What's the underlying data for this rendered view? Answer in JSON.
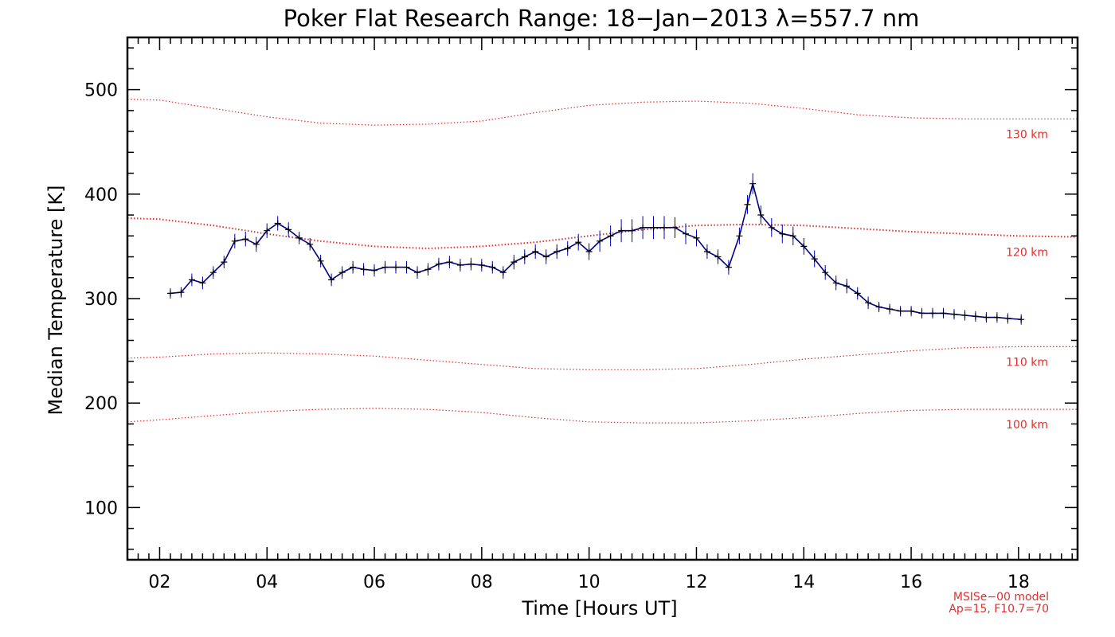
{
  "chart_data": {
    "type": "line",
    "title": "Poker Flat Research Range: 18−Jan−2013 λ=557.7 nm",
    "xlabel": "Time [Hours UT]",
    "ylabel": "Median Temperature [K]",
    "xlim": [
      1.4,
      19.1
    ],
    "ylim": [
      50,
      550
    ],
    "x_ticks": [
      2,
      4,
      6,
      8,
      10,
      12,
      14,
      16,
      18
    ],
    "x_tick_labels": [
      "02",
      "04",
      "06",
      "08",
      "10",
      "12",
      "14",
      "16",
      "18"
    ],
    "y_ticks": [
      100,
      200,
      300,
      400,
      500
    ],
    "y_tick_labels": [
      "100",
      "200",
      "300",
      "400",
      "500"
    ],
    "grid": false,
    "series": [
      {
        "color": "#000080",
        "error_color": "#0000cc",
        "x": [
          2.2,
          2.4,
          2.6,
          2.8,
          3.0,
          3.2,
          3.4,
          3.6,
          3.8,
          4.0,
          4.2,
          4.4,
          4.6,
          4.8,
          5.0,
          5.2,
          5.4,
          5.6,
          5.8,
          6.0,
          6.2,
          6.4,
          6.6,
          6.8,
          7.0,
          7.2,
          7.4,
          7.6,
          7.8,
          8.0,
          8.2,
          8.4,
          8.6,
          8.8,
          9.0,
          9.2,
          9.4,
          9.6,
          9.8,
          10.0,
          10.2,
          10.4,
          10.6,
          10.8,
          11.0,
          11.2,
          11.4,
          11.6,
          11.8,
          12.0,
          12.2,
          12.4,
          12.6,
          12.8,
          12.95,
          13.05,
          13.2,
          13.4,
          13.6,
          13.8,
          14.0,
          14.2,
          14.4,
          14.6,
          14.8,
          15.0,
          15.2,
          15.4,
          15.6,
          15.8,
          16.0,
          16.2,
          16.4,
          16.6,
          16.8,
          17.0,
          17.2,
          17.4,
          17.6,
          17.8,
          18.05
        ],
        "y": [
          305,
          306,
          318,
          315,
          325,
          335,
          355,
          357,
          352,
          365,
          372,
          366,
          358,
          352,
          336,
          318,
          325,
          330,
          328,
          327,
          330,
          330,
          330,
          325,
          328,
          333,
          335,
          332,
          333,
          332,
          330,
          325,
          335,
          340,
          345,
          340,
          345,
          348,
          354,
          345,
          355,
          360,
          365,
          365,
          368,
          368,
          368,
          368,
          362,
          358,
          345,
          340,
          330,
          360,
          390,
          410,
          380,
          368,
          362,
          360,
          350,
          338,
          325,
          315,
          312,
          305,
          296,
          292,
          290,
          288,
          288,
          286,
          286,
          286,
          285,
          284,
          283,
          282,
          282,
          281,
          280
        ],
        "err": [
          5,
          5,
          6,
          6,
          6,
          6,
          7,
          7,
          7,
          7,
          7,
          7,
          6,
          6,
          6,
          6,
          6,
          6,
          6,
          6,
          6,
          6,
          6,
          6,
          6,
          6,
          6,
          6,
          6,
          6,
          6,
          6,
          7,
          7,
          7,
          7,
          7,
          7,
          8,
          8,
          10,
          10,
          11,
          11,
          11,
          11,
          11,
          10,
          10,
          8,
          7,
          7,
          7,
          8,
          9,
          10,
          9,
          9,
          9,
          9,
          8,
          8,
          7,
          7,
          7,
          6,
          6,
          5,
          5,
          5,
          5,
          5,
          5,
          5,
          5,
          5,
          5,
          5,
          5,
          5,
          5
        ]
      }
    ],
    "model_curves": [
      {
        "label": "130 km",
        "color": "#e03030",
        "x": [
          1.4,
          2.0,
          3.0,
          4.0,
          5.0,
          6.0,
          7.0,
          8.0,
          9.0,
          10.0,
          11.0,
          12.0,
          13.0,
          14.0,
          15.0,
          16.0,
          17.0,
          18.0,
          19.1
        ],
        "y": [
          491,
          490,
          482,
          474,
          468,
          466,
          467,
          470,
          478,
          485,
          488,
          489,
          487,
          482,
          476,
          473,
          472,
          472,
          472
        ]
      },
      {
        "label": "120 km",
        "color": "#e03030",
        "x": [
          1.4,
          2.0,
          3.0,
          4.0,
          5.0,
          6.0,
          7.0,
          8.0,
          9.0,
          10.0,
          11.0,
          12.0,
          13.0,
          14.0,
          15.0,
          16.0,
          17.0,
          18.0,
          19.1
        ],
        "y": [
          377,
          376,
          370,
          362,
          355,
          350,
          348,
          350,
          354,
          360,
          366,
          370,
          371,
          370,
          367,
          364,
          362,
          360,
          359
        ]
      },
      {
        "label": "110 km",
        "color": "#e03030",
        "x": [
          1.4,
          2.0,
          3.0,
          4.0,
          5.0,
          6.0,
          7.0,
          8.0,
          9.0,
          10.0,
          11.0,
          12.0,
          13.0,
          14.0,
          15.0,
          16.0,
          17.0,
          18.0,
          19.1
        ],
        "y": [
          243,
          244,
          247,
          248,
          247,
          245,
          241,
          237,
          233,
          232,
          232,
          233,
          237,
          242,
          246,
          250,
          253,
          254,
          254
        ]
      },
      {
        "label": "100 km",
        "color": "#e03030",
        "x": [
          1.4,
          2.0,
          3.0,
          4.0,
          5.0,
          6.0,
          7.0,
          8.0,
          9.0,
          10.0,
          11.0,
          12.0,
          13.0,
          14.0,
          15.0,
          16.0,
          17.0,
          18.0,
          19.1
        ],
        "y": [
          182,
          184,
          188,
          192,
          194,
          195,
          194,
          191,
          186,
          182,
          181,
          181,
          183,
          186,
          190,
          193,
          194,
          194,
          194
        ]
      }
    ],
    "annotations": [
      "MSISe−00 model",
      "Ap=15, F10.7=70"
    ]
  }
}
